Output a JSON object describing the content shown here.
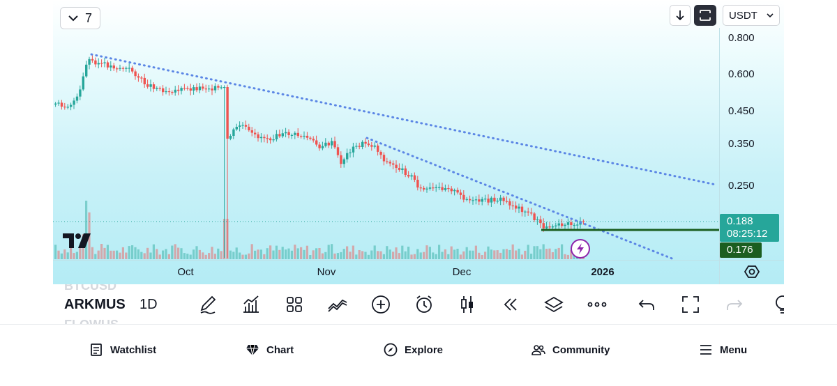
{
  "header": {
    "interval_count": "7",
    "currency": "USDT"
  },
  "price_axis": {
    "labels": [
      "0.800",
      "0.600",
      "0.450",
      "0.350",
      "0.250"
    ],
    "last_price": "0.188",
    "countdown": "08:25:12",
    "support_price": "0.176"
  },
  "time_axis": {
    "months": [
      "Oct",
      "Nov",
      "Dec"
    ],
    "year": "2026"
  },
  "toolbar": {
    "ghost_symbol_above": "BTCUSD",
    "symbol": "ARKMUS",
    "ghost_symbol_below": "FLOWUS",
    "timeframe": "1D"
  },
  "nav": {
    "watchlist": "Watchlist",
    "chart": "Chart",
    "explore": "Explore",
    "community": "Community",
    "menu": "Menu"
  },
  "colors": {
    "up": "#26a69a",
    "down": "#ef5350",
    "trendline": "#5b86e5",
    "support": "#1b5e20"
  },
  "icons": [
    "chevron-down-icon",
    "download-icon",
    "autoscale-icon",
    "pencil-icon",
    "indicators-icon",
    "templates-icon",
    "compare-icon",
    "add-icon",
    "alert-icon",
    "candles-icon",
    "replay-icon",
    "layers-icon",
    "more-icon",
    "undo-icon",
    "fullscreen-icon",
    "redo-icon",
    "idea-icon",
    "settings-icon",
    "flash-icon",
    "watchlist-icon",
    "chart-icon",
    "explore-icon",
    "community-icon",
    "menu-icon"
  ]
}
